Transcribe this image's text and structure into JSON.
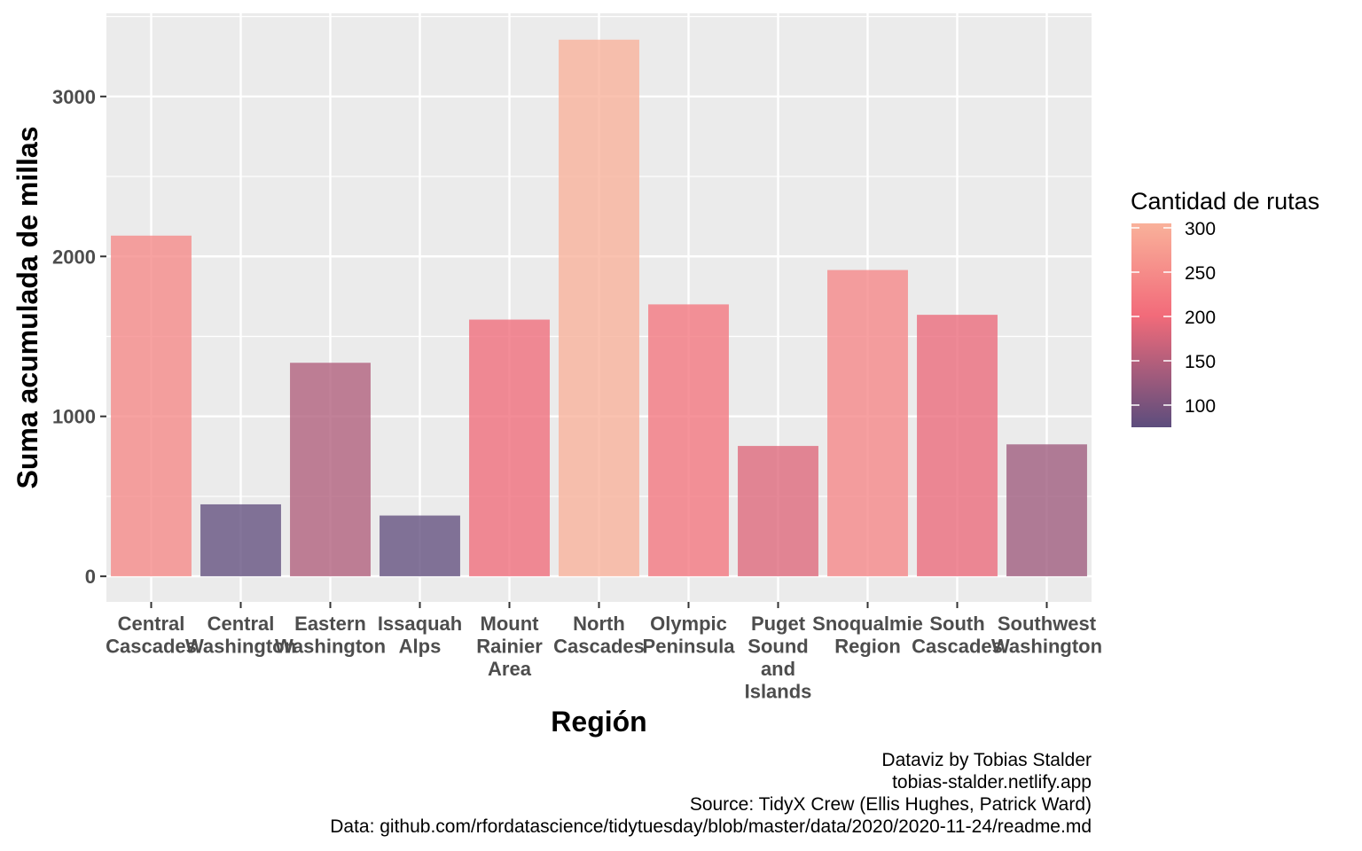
{
  "chart_data": {
    "type": "bar",
    "title": "",
    "xlabel": "Región",
    "ylabel": "Suma acumulada de millas",
    "ylim": [
      -160,
      3520
    ],
    "yticks": [
      0,
      1000,
      2000,
      3000
    ],
    "grid": true,
    "legend_position": "right",
    "categories": [
      [
        "Central",
        "Cascades"
      ],
      [
        "Central",
        "Washington"
      ],
      [
        "Eastern",
        "Washington"
      ],
      [
        "Issaquah",
        "Alps"
      ],
      [
        "Mount",
        "Rainier",
        "Area"
      ],
      [
        "North",
        "Cascades"
      ],
      [
        "Olympic",
        "Peninsula"
      ],
      [
        "Puget",
        "Sound",
        "and",
        "Islands"
      ],
      [
        "Snoqualmie",
        "Region"
      ],
      [
        "South",
        "Cascades"
      ],
      [
        "Southwest",
        "Washington"
      ]
    ],
    "values": [
      2130,
      450,
      1335,
      380,
      1605,
      3355,
      1700,
      815,
      1915,
      1635,
      825
    ],
    "route_counts": [
      245,
      80,
      145,
      80,
      200,
      315,
      215,
      185,
      240,
      195,
      130
    ],
    "legend": {
      "title": "Cantidad de rutas",
      "ticks": [
        100,
        150,
        200,
        250,
        300
      ],
      "range": [
        75,
        305
      ],
      "palette": [
        "#5c4d7d",
        "#f26b7a",
        "#f9b19a"
      ]
    },
    "caption": [
      "Dataviz by Tobias Stalder",
      "tobias-stalder.netlify.app",
      "Source: TidyX Crew (Ellis Hughes, Patrick Ward)",
      "Data: github.com/rfordatascience/tidytuesday/blob/master/data/2020/2020-11-24/readme.md"
    ]
  }
}
